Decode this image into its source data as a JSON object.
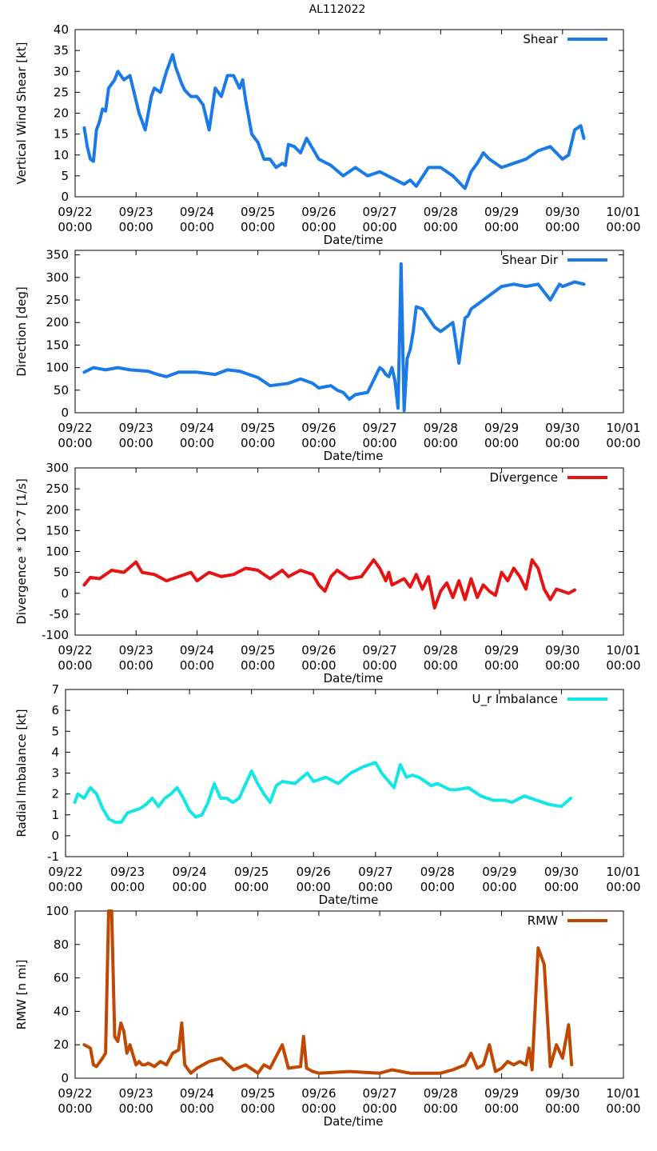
{
  "figure_title": "AL112022",
  "x_tick_labels": [
    [
      "09/22",
      "00:00"
    ],
    [
      "09/23",
      "00:00"
    ],
    [
      "09/24",
      "00:00"
    ],
    [
      "09/25",
      "00:00"
    ],
    [
      "09/26",
      "00:00"
    ],
    [
      "09/27",
      "00:00"
    ],
    [
      "09/28",
      "00:00"
    ],
    [
      "09/29",
      "00:00"
    ],
    [
      "09/30",
      "00:00"
    ],
    [
      "10/01",
      "00:00"
    ]
  ],
  "chart_data": [
    {
      "type": "line",
      "title": "AL112022",
      "xlabel": "Date/time",
      "ylabel": "Vertical Wind Shear [kt]",
      "xlim": [
        0,
        9
      ],
      "ylim": [
        0,
        40
      ],
      "yticks": [
        0,
        5,
        10,
        15,
        20,
        25,
        30,
        35,
        40
      ],
      "series": [
        {
          "name": "Shear",
          "color": "#1a7ae6",
          "x": [
            0.15,
            0.2,
            0.25,
            0.3,
            0.35,
            0.4,
            0.45,
            0.5,
            0.55,
            0.6,
            0.65,
            0.7,
            0.8,
            0.9,
            1.0,
            1.05,
            1.15,
            1.25,
            1.3,
            1.4,
            1.5,
            1.6,
            1.65,
            1.75,
            1.8,
            1.9,
            2.0,
            2.1,
            2.2,
            2.3,
            2.4,
            2.5,
            2.6,
            2.7,
            2.75,
            2.8,
            2.9,
            3.0,
            3.05,
            3.1,
            3.2,
            3.3,
            3.4,
            3.45,
            3.5,
            3.6,
            3.7,
            3.8,
            4.0,
            4.2,
            4.4,
            4.6,
            4.8,
            5.0,
            5.2,
            5.4,
            5.5,
            5.6,
            5.8,
            6.0,
            6.2,
            6.4,
            6.5,
            6.6,
            6.7,
            6.8,
            7.0,
            7.2,
            7.4,
            7.6,
            7.8,
            8.0,
            8.1,
            8.2,
            8.3,
            8.35
          ],
          "y": [
            16.5,
            12,
            9,
            8.5,
            16,
            18,
            21,
            20.5,
            26,
            27,
            28,
            30,
            28,
            29,
            23,
            20,
            16,
            24,
            26,
            25,
            30,
            34,
            31,
            27,
            25.5,
            24,
            24,
            22,
            16,
            26,
            24,
            29,
            29,
            26,
            28,
            23,
            15,
            13,
            11,
            9,
            9,
            7,
            8,
            7.5,
            12.5,
            12,
            10.5,
            14,
            9,
            7.5,
            5,
            7,
            5,
            6,
            4.5,
            3,
            4,
            2.5,
            7,
            7,
            5,
            2,
            6,
            8,
            10.5,
            9,
            7,
            8,
            9,
            11,
            12,
            9,
            10,
            16,
            17,
            14
          ]
        }
      ]
    },
    {
      "type": "line",
      "xlabel": "Date/time",
      "ylabel": "Direction [deg]",
      "xlim": [
        0,
        9
      ],
      "ylim": [
        0,
        360
      ],
      "yticks": [
        0,
        50,
        100,
        150,
        200,
        250,
        300,
        350
      ],
      "series": [
        {
          "name": "Shear Dir",
          "color": "#1a7ae6",
          "x": [
            0.15,
            0.3,
            0.5,
            0.7,
            0.9,
            1.2,
            1.35,
            1.5,
            1.7,
            2.0,
            2.3,
            2.5,
            2.7,
            3.0,
            3.2,
            3.5,
            3.7,
            3.9,
            4.0,
            4.2,
            4.3,
            4.4,
            4.5,
            4.6,
            4.8,
            5.0,
            5.05,
            5.1,
            5.15,
            5.2,
            5.25,
            5.3,
            5.35,
            5.4,
            5.45,
            5.5,
            5.55,
            5.6,
            5.7,
            5.8,
            5.9,
            6.0,
            6.2,
            6.3,
            6.4,
            6.45,
            6.5,
            6.6,
            6.8,
            7.0,
            7.2,
            7.4,
            7.6,
            7.8,
            7.95,
            8.0,
            8.2,
            8.35
          ],
          "y": [
            90,
            100,
            95,
            100,
            95,
            92,
            85,
            80,
            90,
            90,
            85,
            95,
            92,
            78,
            60,
            65,
            75,
            65,
            55,
            60,
            50,
            45,
            30,
            40,
            45,
            100,
            95,
            85,
            80,
            100,
            70,
            10,
            330,
            5,
            120,
            140,
            180,
            235,
            230,
            210,
            190,
            180,
            200,
            110,
            210,
            215,
            230,
            240,
            260,
            280,
            285,
            280,
            285,
            250,
            285,
            280,
            290,
            285
          ]
        }
      ]
    },
    {
      "type": "line",
      "xlabel": "Date/time",
      "ylabel": "Divergence * 10^7 [1/s]",
      "xlim": [
        0,
        9
      ],
      "ylim": [
        -100,
        300
      ],
      "yticks": [
        -100,
        -50,
        0,
        50,
        100,
        150,
        200,
        250,
        300
      ],
      "series": [
        {
          "name": "Divergence",
          "color": "#e51414",
          "x": [
            0.15,
            0.25,
            0.4,
            0.6,
            0.8,
            1.0,
            1.1,
            1.3,
            1.5,
            1.7,
            1.9,
            2.0,
            2.2,
            2.4,
            2.6,
            2.8,
            3.0,
            3.2,
            3.4,
            3.5,
            3.7,
            3.9,
            4.0,
            4.1,
            4.2,
            4.3,
            4.5,
            4.7,
            4.9,
            5.0,
            5.1,
            5.15,
            5.2,
            5.4,
            5.5,
            5.6,
            5.7,
            5.8,
            5.9,
            6.0,
            6.1,
            6.2,
            6.3,
            6.4,
            6.5,
            6.6,
            6.7,
            6.8,
            6.9,
            7.0,
            7.1,
            7.2,
            7.3,
            7.4,
            7.5,
            7.6,
            7.7,
            7.8,
            7.9,
            8.0,
            8.1,
            8.2
          ],
          "y": [
            20,
            38,
            35,
            55,
            50,
            75,
            50,
            45,
            30,
            40,
            50,
            30,
            50,
            40,
            45,
            60,
            55,
            35,
            55,
            40,
            55,
            45,
            20,
            5,
            40,
            55,
            35,
            40,
            80,
            60,
            30,
            50,
            20,
            35,
            15,
            45,
            10,
            40,
            -35,
            5,
            25,
            -10,
            30,
            -15,
            35,
            -10,
            20,
            5,
            -5,
            50,
            30,
            60,
            40,
            10,
            80,
            60,
            10,
            -15,
            10,
            5,
            0,
            8
          ]
        }
      ]
    },
    {
      "type": "line",
      "xlabel": "Date/time",
      "ylabel": "Radial Imbalance [kt]",
      "xlim": [
        0,
        9
      ],
      "ylim": [
        -1,
        7
      ],
      "yticks": [
        -1,
        0,
        1,
        2,
        3,
        4,
        5,
        6,
        7
      ],
      "series": [
        {
          "name": "U_r Imbalance",
          "color": "#14e6e6",
          "x": [
            0.15,
            0.2,
            0.3,
            0.4,
            0.5,
            0.6,
            0.7,
            0.8,
            0.9,
            1.0,
            1.1,
            1.2,
            1.3,
            1.4,
            1.5,
            1.6,
            1.7,
            1.8,
            1.9,
            2.0,
            2.1,
            2.2,
            2.3,
            2.4,
            2.5,
            2.6,
            2.7,
            2.8,
            3.0,
            3.1,
            3.2,
            3.3,
            3.4,
            3.5,
            3.7,
            3.9,
            4.0,
            4.2,
            4.4,
            4.6,
            4.8,
            5.0,
            5.1,
            5.3,
            5.4,
            5.5,
            5.6,
            5.7,
            5.9,
            6.0,
            6.2,
            6.3,
            6.5,
            6.7,
            6.9,
            7.1,
            7.2,
            7.4,
            7.6,
            7.8,
            8.0,
            8.15
          ],
          "y": [
            1.6,
            2.0,
            1.8,
            2.3,
            2.0,
            1.3,
            0.8,
            0.65,
            0.65,
            1.1,
            1.2,
            1.3,
            1.5,
            1.8,
            1.4,
            1.8,
            2.0,
            2.3,
            1.8,
            1.2,
            0.9,
            1.0,
            1.6,
            2.5,
            1.8,
            1.8,
            1.6,
            1.8,
            3.1,
            2.5,
            2.0,
            1.6,
            2.4,
            2.6,
            2.5,
            3.0,
            2.6,
            2.8,
            2.5,
            3.0,
            3.3,
            3.5,
            3.0,
            2.3,
            3.4,
            2.8,
            2.9,
            2.8,
            2.4,
            2.5,
            2.2,
            2.2,
            2.3,
            1.9,
            1.7,
            1.7,
            1.6,
            1.9,
            1.7,
            1.5,
            1.4,
            1.8
          ]
        }
      ]
    },
    {
      "type": "line",
      "xlabel": "Date/time",
      "ylabel": "RMW [n mi]",
      "xlim": [
        0,
        9
      ],
      "ylim": [
        0,
        100
      ],
      "yticks": [
        0,
        20,
        40,
        60,
        80,
        100
      ],
      "series": [
        {
          "name": "RMW",
          "color": "#c04800",
          "x": [
            0.15,
            0.25,
            0.3,
            0.35,
            0.45,
            0.5,
            0.55,
            0.6,
            0.65,
            0.7,
            0.75,
            0.8,
            0.85,
            0.9,
            1.0,
            1.05,
            1.1,
            1.15,
            1.2,
            1.3,
            1.4,
            1.5,
            1.6,
            1.7,
            1.75,
            1.8,
            1.9,
            2.0,
            2.2,
            2.4,
            2.6,
            2.8,
            3.0,
            3.1,
            3.2,
            3.4,
            3.5,
            3.7,
            3.75,
            3.8,
            3.9,
            4.0,
            4.5,
            5.0,
            5.2,
            5.5,
            6.0,
            6.2,
            6.4,
            6.5,
            6.6,
            6.7,
            6.8,
            6.9,
            7.0,
            7.1,
            7.2,
            7.3,
            7.4,
            7.45,
            7.5,
            7.6,
            7.7,
            7.8,
            7.9,
            8.0,
            8.1,
            8.15
          ],
          "y": [
            20,
            18,
            8,
            7,
            12,
            15,
            100,
            100,
            25,
            22,
            33,
            28,
            15,
            20,
            8,
            10,
            8,
            8,
            9,
            7,
            10,
            8,
            15,
            17,
            33,
            8,
            3,
            6,
            10,
            12,
            5,
            8,
            3,
            8,
            6,
            20,
            6,
            7,
            25,
            6,
            4,
            3,
            4,
            3,
            5,
            3,
            3,
            5,
            8,
            15,
            6,
            8,
            20,
            4,
            6,
            10,
            8,
            10,
            8,
            18,
            5,
            78,
            68,
            7,
            20,
            12,
            32,
            8
          ]
        }
      ]
    }
  ]
}
